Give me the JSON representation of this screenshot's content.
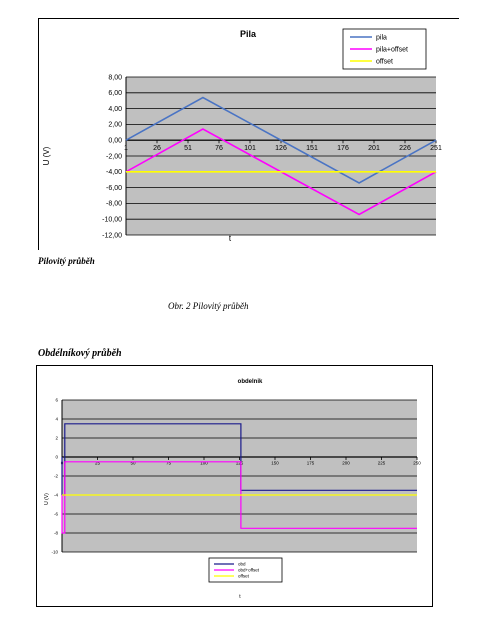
{
  "doc": {
    "caption_pilovity": "Pilovitý průběh",
    "figure_caption": "Obr. 2 Pilovitý průběh",
    "heading_obdelnikovy": "Obdélníkový průběh"
  },
  "chart_data": [
    {
      "type": "line",
      "title": "Pila",
      "xlabel": "t",
      "ylabel": "U (V)",
      "ylim": [
        -12,
        8
      ],
      "yticks": [
        "8,00",
        "6,00",
        "4,00",
        "2,00",
        "0,00",
        "-2,00",
        "-4,00",
        "-6,00",
        "-8,00",
        "-10,00",
        "-12,00"
      ],
      "xticks": [
        "1",
        "26",
        "51",
        "76",
        "101",
        "126",
        "151",
        "176",
        "201",
        "226",
        "251"
      ],
      "xlim": [
        1,
        251
      ],
      "grid": true,
      "legend_position": "top-right",
      "series": [
        {
          "name": "pila",
          "color": "#4a74c4",
          "x": [
            1,
            63,
            189,
            251
          ],
          "y": [
            0,
            5.4,
            -5.4,
            0
          ]
        },
        {
          "name": "pila+offset",
          "color": "#ff00ff",
          "x": [
            1,
            63,
            189,
            251
          ],
          "y": [
            -4,
            1.4,
            -9.4,
            -4
          ]
        },
        {
          "name": "offset",
          "color": "#ffff00",
          "x": [
            1,
            251
          ],
          "y": [
            -4,
            -4
          ]
        }
      ]
    },
    {
      "type": "line",
      "title": "obdelnik",
      "xlabel": "t",
      "ylabel": "U (V)",
      "ylim": [
        -10,
        6
      ],
      "yticks": [
        "6",
        "4",
        "2",
        "0",
        "-2",
        "-4",
        "-6",
        "-8",
        "-10"
      ],
      "xticks": [
        "0",
        "25",
        "50",
        "75",
        "100",
        "125",
        "150",
        "175",
        "200",
        "225",
        "250"
      ],
      "xlim": [
        0,
        250
      ],
      "grid": true,
      "legend_position": "bottom",
      "series": [
        {
          "name": "obd",
          "color": "#1a1a8c",
          "x": [
            0,
            0,
            2,
            2,
            126,
            126,
            250
          ],
          "y": [
            0,
            -4,
            -4,
            3.5,
            3.5,
            -3.5,
            -3.5
          ]
        },
        {
          "name": "obd+offset",
          "color": "#ff00ff",
          "x": [
            0,
            0,
            2,
            2,
            126,
            126,
            250
          ],
          "y": [
            -4,
            -8,
            -8,
            -0.5,
            -0.5,
            -7.5,
            -7.5
          ]
        },
        {
          "name": "offset",
          "color": "#ffff00",
          "x": [
            0,
            250
          ],
          "y": [
            -4,
            -4
          ]
        }
      ]
    }
  ]
}
